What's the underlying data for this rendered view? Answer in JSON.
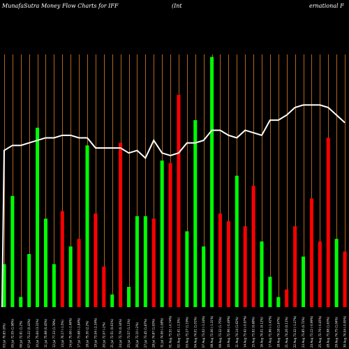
{
  "chart_data": {
    "type": "bar",
    "title_left": "MunafaSutra  Money Flow  Charts for IFF",
    "title_mid": "(Int",
    "title_right": "ernational F",
    "ylim": [
      0,
      100
    ],
    "grid": true,
    "colors": {
      "background": "#000000",
      "up": "#00ff00",
      "down": "#ff0000",
      "grid": "#b5651d",
      "line": "#ffffff"
    },
    "categories": [
      "03 Jul 70.65 (0%)",
      "05 Jul 72.05 (1.98%)",
      "06 Jul 72.91 (1.2%)",
      "07 Jul 73.22 (0.43%)",
      "10 Jul 75.64 (3.31%)",
      "11 Jul 75.98 (0.45%)",
      "12 Jul 77.33 (1.78%)",
      "13 Jul 76.17 (-1.5%)",
      "14 Jul 75.06 (-1.46%)",
      "17 Jul 73.68 (-1.84%)",
      "18 Jul 75.30 (2.2%)",
      "19 Jul 73.54 (-2.34%)",
      "20 Jul 72.07 (-2%)",
      "21 Jul 72.51 (0.61%)",
      "24 Jul 72.76 (0.34%)",
      "25 Jul 73.57 (1.11%)",
      "26 Jul 72.10 (-2%)",
      "27 Jul 73.45 (1.87%)",
      "28 Jul 74.87 (1.93%)",
      "31 Jul 74.06 (-1.08%)",
      "01 Aug 73.51 (-0.74%)",
      "02 Aug 72.41 (-1.5%)",
      "03 Aug 73.27 (1.19%)",
      "04 Aug 74.01 (1.01%)",
      "07 Aug 73.02 (-1.34%)",
      "08 Aug 72.06 (-1.31%)",
      "09 Aug 73.32 (1.75%)",
      "10 Aug 72.96 (-0.49%)",
      "11 Aug 74.14 (1.62%)",
      "14 Aug 73.42 (-0.97%)",
      "15 Aug 73.92 (0.68%)",
      "16 Aug 74.01 (0.12%)",
      "17 Aug 72.96 (-1.42%)",
      "18 Aug 74.18 (1.67%)",
      "21 Aug 74.26 (0.11%)",
      "22 Aug 73.32 (-1.27%)",
      "23 Aug 73.85 (0.72%)",
      "24 Aug 73.12 (-0.99%)",
      "25 Aug 72.79 (-0.45%)",
      "28 Aug 73.98 (1.63%)",
      "29 Aug 74.75 (1.04%)",
      "30 Aug 74.04 (-0.95%)"
    ],
    "series": [
      {
        "values": [
          17,
          44,
          4,
          21,
          71,
          35,
          17,
          38,
          24,
          27,
          64,
          37,
          16,
          5,
          65,
          8,
          36,
          36,
          35,
          58,
          57,
          84,
          30,
          74,
          24,
          99,
          37,
          34,
          52,
          32,
          48,
          26,
          12,
          4,
          7,
          32,
          20,
          43,
          26,
          67,
          27,
          22
        ],
        "directions": [
          "up",
          "up",
          "up",
          "up",
          "up",
          "up",
          "up",
          "down",
          "up",
          "down",
          "up",
          "down",
          "down",
          "up",
          "down",
          "up",
          "up",
          "up",
          "down",
          "up",
          "down",
          "down",
          "up",
          "up",
          "up",
          "up",
          "down",
          "down",
          "up",
          "down",
          "down",
          "up",
          "up",
          "up",
          "down",
          "down",
          "up",
          "down",
          "down",
          "down",
          "up",
          "down"
        ]
      },
      {
        "values": [
          62,
          64,
          64,
          65,
          66,
          67,
          67,
          68,
          68,
          67,
          67,
          63,
          63,
          63,
          63,
          61,
          62,
          59,
          66,
          61,
          60,
          61,
          65,
          65,
          66,
          70,
          70,
          68,
          67,
          70,
          69,
          68,
          74,
          74,
          76,
          79,
          80,
          80,
          80,
          79,
          76,
          73
        ]
      }
    ]
  }
}
